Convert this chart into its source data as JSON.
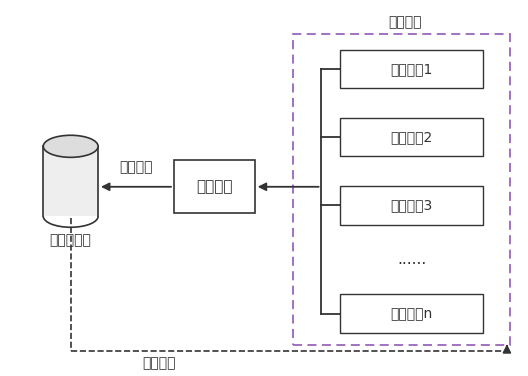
{
  "title": "",
  "bg_color": "#ffffff",
  "cylinder_label": "地图服务器",
  "splice_label": "拼接模块",
  "dashed_box_label": "显示终端",
  "terminal_labels": [
    "显示终端1",
    "显示终端2",
    "显示终端3",
    "显示终端n"
  ],
  "dots_text": "......",
  "map_param_label": "地图参数",
  "map_data_label": "地图数据",
  "line_color": "#333333",
  "dashed_border_color": "#9966bb",
  "font_size": 11,
  "label_font_size": 10
}
